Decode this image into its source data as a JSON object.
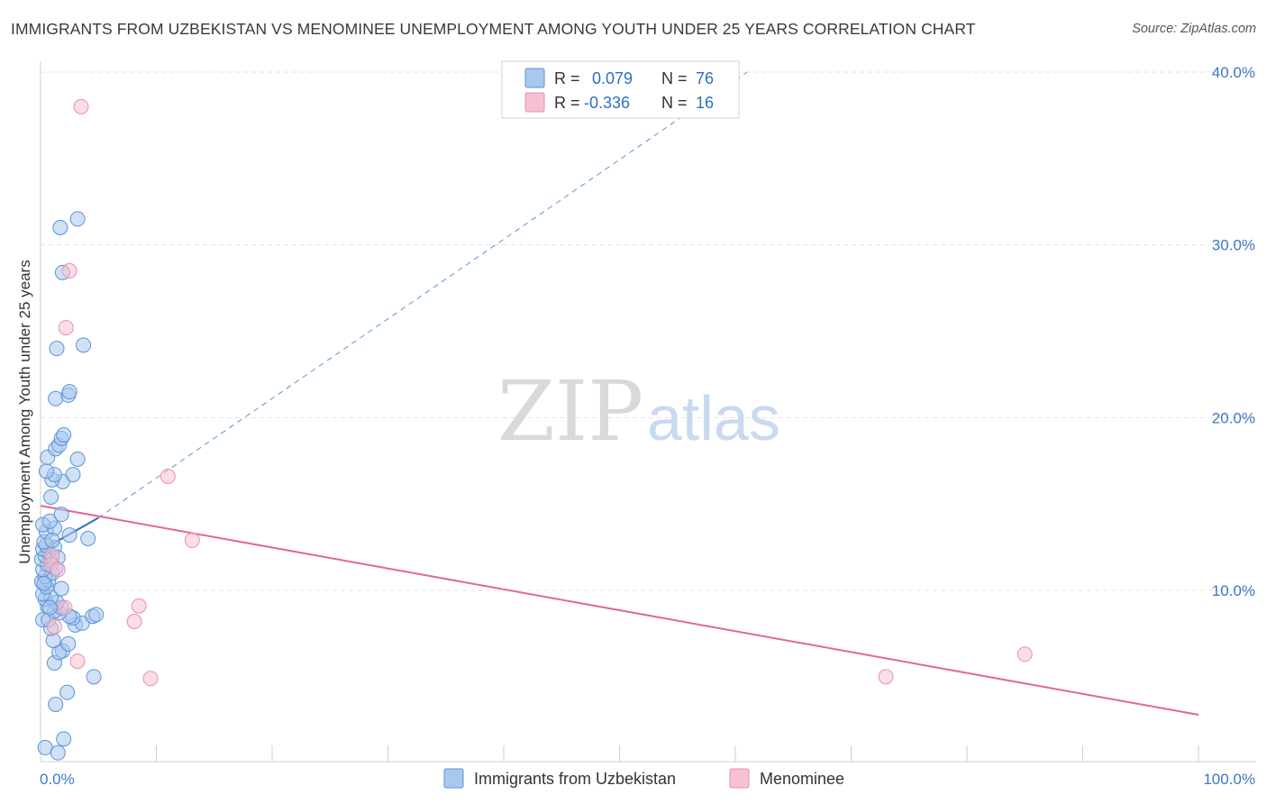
{
  "title": "IMMIGRANTS FROM UZBEKISTAN VS MENOMINEE UNEMPLOYMENT AMONG YOUTH UNDER 25 YEARS CORRELATION CHART",
  "source": "Source: ZipAtlas.com",
  "watermark": {
    "zip": "ZIP",
    "atlas": "atlas"
  },
  "colors": {
    "blue_fill": "#a9c8ee",
    "blue_stroke": "#5b93d6",
    "blue_line": "#2f6fc0",
    "pink_fill": "#f6c1d2",
    "pink_stroke": "#e98fae",
    "pink_line": "#e0679a",
    "grid": "#e3e3e3",
    "axis_text": "#3b78c9"
  },
  "chart_data": {
    "type": "scatter",
    "title": "IMMIGRANTS FROM UZBEKISTAN VS MENOMINEE UNEMPLOYMENT AMONG YOUTH UNDER 25 YEARS CORRELATION CHART",
    "xlabel": "",
    "ylabel": "Unemployment Among Youth under 25 years",
    "xlim": [
      0,
      100
    ],
    "ylim": [
      0,
      42
    ],
    "x_tick_labels": [
      "0.0%",
      "100.0%"
    ],
    "y_ticks": [
      10,
      20,
      30,
      40
    ],
    "y_tick_labels": [
      "10.0%",
      "20.0%",
      "30.0%",
      "40.0%"
    ],
    "legend": [
      {
        "name": "Immigrants from Uzbekistan",
        "r_label": "R =",
        "r": "0.079",
        "n_label": "N =",
        "n": "76"
      },
      {
        "name": "Menominee",
        "r_label": "R =",
        "r": "-0.336",
        "n_label": "N =",
        "n": "16"
      }
    ],
    "series": [
      {
        "name": "Immigrants from Uzbekistan",
        "color": "blue",
        "trend": {
          "x0": 0.0,
          "y0": 12.3,
          "x1": 5.0,
          "y1": 14.2,
          "dashed_to_x": 61.0,
          "dashed_to_y": 40.0
        },
        "points": [
          [
            0.4,
            0.9
          ],
          [
            1.5,
            0.6
          ],
          [
            2.0,
            1.4
          ],
          [
            1.3,
            3.4
          ],
          [
            2.3,
            4.1
          ],
          [
            4.6,
            5.0
          ],
          [
            1.2,
            5.8
          ],
          [
            1.9,
            6.5
          ],
          [
            1.6,
            6.4
          ],
          [
            1.1,
            7.1
          ],
          [
            2.4,
            6.9
          ],
          [
            0.9,
            7.8
          ],
          [
            3.0,
            8.0
          ],
          [
            3.6,
            8.1
          ],
          [
            0.2,
            8.3
          ],
          [
            0.7,
            8.3
          ],
          [
            2.8,
            8.4
          ],
          [
            2.5,
            8.5
          ],
          [
            4.5,
            8.5
          ],
          [
            4.8,
            8.6
          ],
          [
            1.6,
            8.7
          ],
          [
            1.2,
            8.8
          ],
          [
            1.8,
            9.0
          ],
          [
            0.6,
            9.1
          ],
          [
            1.4,
            9.3
          ],
          [
            0.4,
            9.5
          ],
          [
            0.9,
            9.6
          ],
          [
            0.2,
            9.8
          ],
          [
            1.8,
            10.1
          ],
          [
            0.5,
            10.2
          ],
          [
            0.1,
            10.5
          ],
          [
            0.7,
            10.6
          ],
          [
            0.4,
            10.8
          ],
          [
            1.0,
            11.0
          ],
          [
            0.2,
            11.2
          ],
          [
            1.3,
            11.3
          ],
          [
            0.6,
            11.5
          ],
          [
            0.9,
            11.7
          ],
          [
            0.1,
            11.8
          ],
          [
            0.4,
            12.0
          ],
          [
            0.7,
            12.2
          ],
          [
            0.2,
            12.4
          ],
          [
            1.2,
            12.5
          ],
          [
            0.5,
            12.6
          ],
          [
            0.3,
            12.8
          ],
          [
            4.1,
            13.0
          ],
          [
            2.5,
            13.2
          ],
          [
            0.5,
            13.4
          ],
          [
            1.2,
            13.6
          ],
          [
            0.2,
            13.8
          ],
          [
            0.8,
            14.0
          ],
          [
            1.8,
            14.4
          ],
          [
            0.9,
            15.4
          ],
          [
            1.9,
            16.3
          ],
          [
            1.0,
            16.4
          ],
          [
            1.2,
            16.7
          ],
          [
            0.5,
            16.9
          ],
          [
            2.8,
            16.7
          ],
          [
            3.2,
            17.6
          ],
          [
            0.6,
            17.7
          ],
          [
            1.3,
            18.2
          ],
          [
            1.6,
            18.4
          ],
          [
            1.8,
            18.8
          ],
          [
            2.0,
            19.0
          ],
          [
            1.3,
            21.1
          ],
          [
            2.4,
            21.3
          ],
          [
            2.5,
            21.5
          ],
          [
            1.4,
            24.0
          ],
          [
            3.7,
            24.2
          ],
          [
            1.9,
            28.4
          ],
          [
            1.7,
            31.0
          ],
          [
            3.2,
            31.5
          ],
          [
            0.3,
            10.4
          ],
          [
            1.5,
            11.9
          ],
          [
            0.8,
            9.0
          ],
          [
            1.0,
            12.9
          ]
        ]
      },
      {
        "name": "Menominee",
        "color": "pink",
        "trend": {
          "x0": 0.0,
          "y0": 14.9,
          "x1": 100.0,
          "y1": 2.8
        },
        "points": [
          [
            3.5,
            38.0
          ],
          [
            2.5,
            28.5
          ],
          [
            2.2,
            25.2
          ],
          [
            11.0,
            16.6
          ],
          [
            13.1,
            12.9
          ],
          [
            1.0,
            12.0
          ],
          [
            0.9,
            11.5
          ],
          [
            1.5,
            11.2
          ],
          [
            2.1,
            9.0
          ],
          [
            8.5,
            9.1
          ],
          [
            8.1,
            8.2
          ],
          [
            1.2,
            7.9
          ],
          [
            3.2,
            5.9
          ],
          [
            9.5,
            4.9
          ],
          [
            73.0,
            5.0
          ],
          [
            85.0,
            6.3
          ]
        ]
      }
    ]
  }
}
